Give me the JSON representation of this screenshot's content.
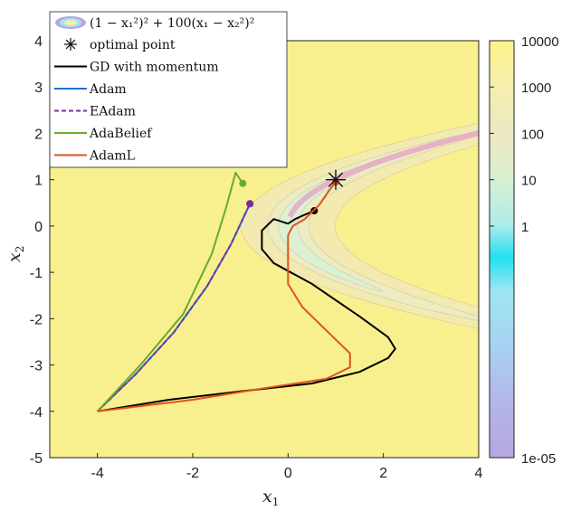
{
  "chart_data": {
    "type": "contour",
    "title": "",
    "function_label": "(1 − x₁²)² + 100(x₁ − x₂²)²",
    "xlabel": "x",
    "xlabel_sub": "1",
    "ylabel": "x",
    "ylabel_sub": "2",
    "xlim": [
      -5,
      4
    ],
    "ylim": [
      -5,
      4
    ],
    "xticks": [
      "-4",
      "-2",
      "0",
      "2",
      "4"
    ],
    "yticks": [
      "4",
      "3",
      "2",
      "1",
      "0",
      "-1",
      "-2",
      "-3",
      "-4",
      "-5"
    ],
    "contour_levels": [
      100,
      20,
      5,
      1,
      0.2
    ],
    "colorbar": {
      "scale": "log",
      "range": [
        1e-05,
        10000
      ],
      "tick_labels": [
        "10000",
        "1000",
        "100",
        "10",
        "1",
        "1e-05"
      ],
      "tick_values": [
        10000,
        1000,
        100,
        10,
        1,
        1e-05
      ]
    },
    "optimal_point": {
      "label": "optimal point",
      "x": 1,
      "y": 1
    },
    "legend": {
      "position": "top-left",
      "entries": [
        {
          "label": "optimal point",
          "marker": "asterisk"
        },
        {
          "label": "GD with momentum",
          "color": "#000000"
        },
        {
          "label": "Adam",
          "color": "#1f6fd1"
        },
        {
          "label": "EAdam",
          "color": "#7b2d9a",
          "dash": true
        },
        {
          "label": "AdaBelief",
          "color": "#6aaa2a"
        },
        {
          "label": "AdamL",
          "color": "#e0531d"
        }
      ]
    },
    "series": [
      {
        "name": "GD with momentum",
        "color": "#000000",
        "end": [
          0.55,
          0.33
        ],
        "points": [
          [
            -4,
            -4
          ],
          [
            -2.5,
            -3.75
          ],
          [
            -1,
            -3.57
          ],
          [
            0.5,
            -3.4
          ],
          [
            1.5,
            -3.15
          ],
          [
            2.1,
            -2.85
          ],
          [
            2.25,
            -2.65
          ],
          [
            2.1,
            -2.4
          ],
          [
            1.5,
            -1.95
          ],
          [
            0.5,
            -1.25
          ],
          [
            -0.3,
            -0.8
          ],
          [
            -0.55,
            -0.5
          ],
          [
            -0.55,
            -0.1
          ],
          [
            -0.3,
            0.15
          ],
          [
            0.0,
            0.05
          ],
          [
            0.15,
            0.15
          ],
          [
            0.3,
            0.22
          ],
          [
            0.55,
            0.33
          ]
        ]
      },
      {
        "name": "Adam",
        "color": "#1f6fd1",
        "end": [
          -0.8,
          0.48
        ],
        "points": [
          [
            -4,
            -4
          ],
          [
            -3.2,
            -3.2
          ],
          [
            -2.4,
            -2.3
          ],
          [
            -1.7,
            -1.3
          ],
          [
            -1.2,
            -0.4
          ],
          [
            -0.95,
            0.15
          ],
          [
            -0.8,
            0.48
          ]
        ]
      },
      {
        "name": "EAdam",
        "color": "#7b2d9a",
        "end": [
          -0.8,
          0.48
        ],
        "points": [
          [
            -4,
            -4
          ],
          [
            -3.2,
            -3.2
          ],
          [
            -2.4,
            -2.3
          ],
          [
            -1.7,
            -1.3
          ],
          [
            -1.2,
            -0.4
          ],
          [
            -0.95,
            0.15
          ],
          [
            -0.8,
            0.48
          ]
        ]
      },
      {
        "name": "AdaBelief",
        "color": "#6aaa2a",
        "end": [
          -0.95,
          0.92
        ],
        "points": [
          [
            -4,
            -4
          ],
          [
            -3.1,
            -3.0
          ],
          [
            -2.2,
            -1.9
          ],
          [
            -1.6,
            -0.6
          ],
          [
            -1.3,
            0.4
          ],
          [
            -1.1,
            1.15
          ],
          [
            -0.95,
            0.92
          ]
        ]
      },
      {
        "name": "AdamL",
        "color": "#e0531d",
        "end": [
          1.0,
          0.95
        ],
        "points": [
          [
            -4,
            -4
          ],
          [
            -2.0,
            -3.75
          ],
          [
            -0.5,
            -3.5
          ],
          [
            0.8,
            -3.3
          ],
          [
            1.3,
            -3.05
          ],
          [
            1.3,
            -2.75
          ],
          [
            0.9,
            -2.35
          ],
          [
            0.3,
            -1.75
          ],
          [
            0,
            -1.25
          ],
          [
            0,
            -0.6
          ],
          [
            0,
            -0.2
          ],
          [
            0.1,
            0.0
          ],
          [
            0.35,
            0.15
          ],
          [
            0.65,
            0.45
          ],
          [
            0.85,
            0.75
          ],
          [
            1.0,
            0.95
          ]
        ]
      }
    ]
  }
}
